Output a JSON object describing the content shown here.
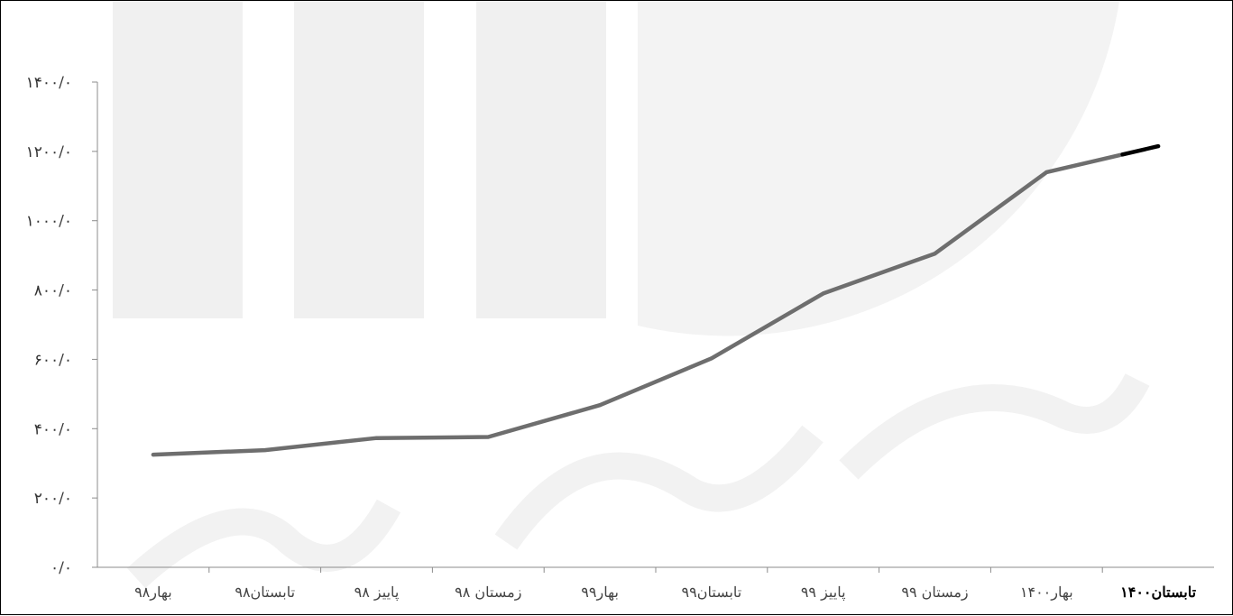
{
  "chart_data": {
    "type": "line",
    "title": "",
    "xlabel": "",
    "ylabel": "",
    "categories": [
      "بهار۹۸",
      "تابستان۹۸",
      "پاییز ۹۸",
      "زمستان ۹۸",
      "بهار۹۹",
      "تابستان۹۹",
      "پاییز ۹۹",
      "زمستان ۹۹",
      "بهار۱۴۰۰",
      "تابستان۱۴۰۰"
    ],
    "y_ticks": [
      0,
      200,
      400,
      600,
      800,
      1000,
      1200,
      1400
    ],
    "y_tick_labels": [
      "۰/۰",
      "۲۰۰/۰",
      "۴۰۰/۰",
      "۶۰۰/۰",
      "۸۰۰/۰",
      "۱۰۰۰/۰",
      "۱۲۰۰/۰",
      "۱۴۰۰/۰"
    ],
    "ylim": [
      0,
      1400
    ],
    "series": [
      {
        "values": [
          325,
          338,
          373,
          376,
          468,
          603,
          790,
          905,
          1140,
          1215
        ]
      }
    ],
    "colors": {
      "line": "#6e6e6e",
      "line_last_segment": "#000000",
      "axis": "#8c8c8c",
      "watermark": "#eeeeee"
    },
    "grid": false,
    "legend": "none"
  }
}
